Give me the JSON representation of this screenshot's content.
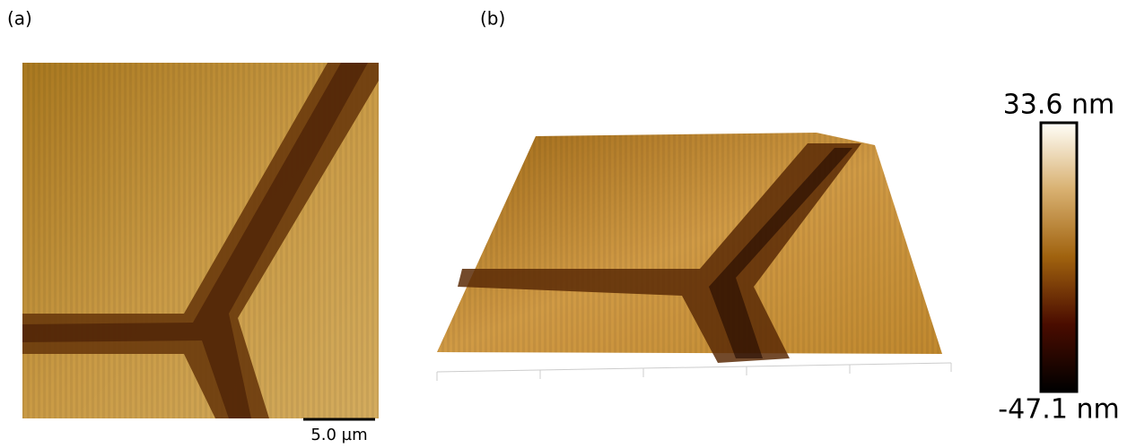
{
  "panels": [
    {
      "label": "(a)",
      "scale_bar": "5.0 µm"
    },
    {
      "label": "(b)"
    }
  ],
  "colorbar": {
    "max_label": "33.6 nm",
    "min_label": "-47.1 nm"
  }
}
